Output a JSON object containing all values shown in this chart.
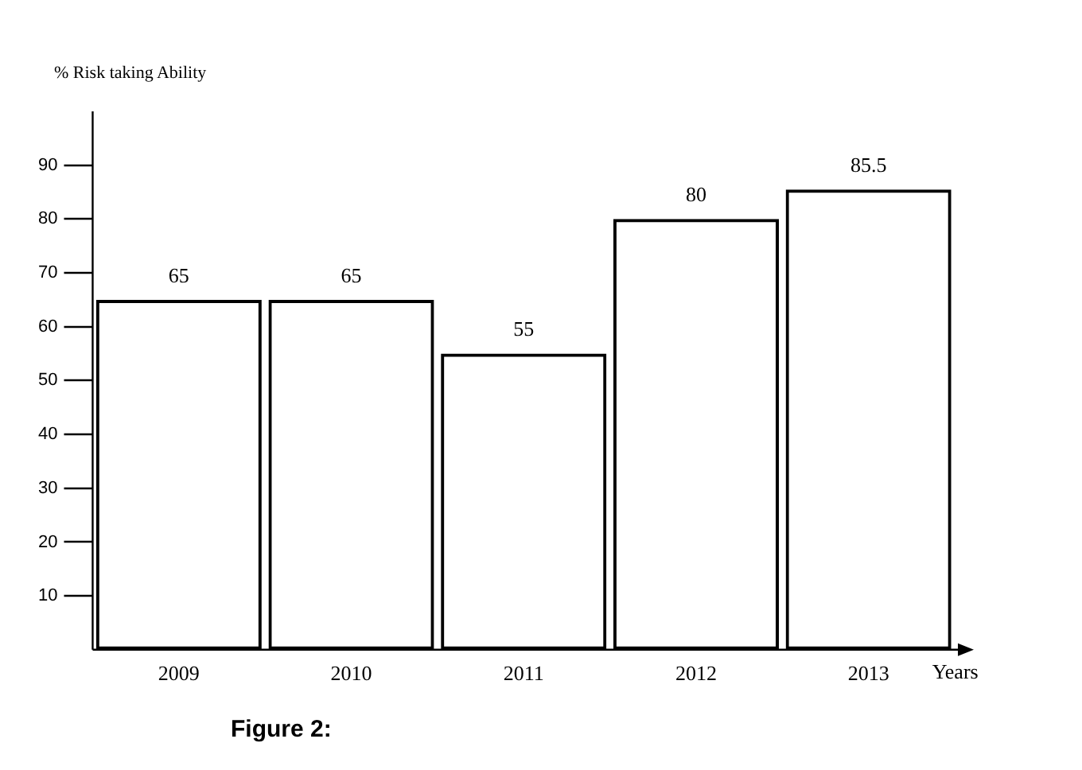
{
  "chart_data": {
    "type": "bar",
    "ylabel": "% Risk taking Ability",
    "xlabel": "Years",
    "categories": [
      "2009",
      "2010",
      "2011",
      "2012",
      "2013"
    ],
    "values": [
      65,
      65,
      55,
      80,
      85.5
    ],
    "color": "#000000",
    "ylim": [
      0,
      100
    ],
    "yticks": [
      10,
      20,
      30,
      40,
      50,
      60,
      70,
      80,
      90
    ],
    "grid": false,
    "legend": false,
    "data_labels": true,
    "annotations": [
      "Figure 2:"
    ]
  }
}
